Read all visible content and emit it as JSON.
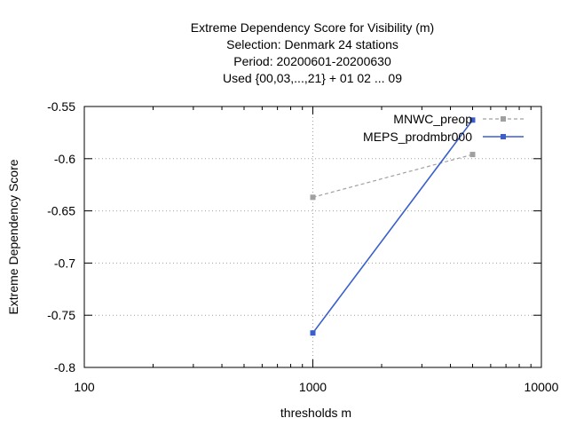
{
  "chart_data": {
    "type": "line",
    "title_lines": [
      "Extreme Dependency Score  for Visibility (m)",
      "Selection: Denmark     24 stations",
      "Period: 20200601-20200630",
      "Used {00,03,...,21} + 01 02 ... 09"
    ],
    "xlabel": "thresholds m",
    "ylabel": "Extreme Dependency Score",
    "x_scale": "log",
    "xlim": [
      100,
      10000
    ],
    "ylim": [
      -0.8,
      -0.55
    ],
    "x_ticks": [
      100,
      1000,
      10000
    ],
    "x_tick_labels": [
      "100",
      "1000",
      "10000"
    ],
    "y_ticks": [
      -0.8,
      -0.75,
      -0.7,
      -0.65,
      -0.6,
      -0.55
    ],
    "y_tick_labels": [
      "-0.8",
      "-0.75",
      "-0.7",
      "-0.65",
      "-0.6",
      "-0.55"
    ],
    "grid": true,
    "legend_position": "top-right",
    "series": [
      {
        "name": "MNWC_preop",
        "color": "#a0a0a0",
        "dashed": true,
        "points": [
          {
            "x": 1000,
            "y": -0.637
          },
          {
            "x": 5000,
            "y": -0.596
          }
        ]
      },
      {
        "name": "MEPS_prodmbr000",
        "color": "#3a5fcd",
        "dashed": false,
        "points": [
          {
            "x": 1000,
            "y": -0.767
          },
          {
            "x": 5000,
            "y": -0.563
          }
        ]
      }
    ]
  }
}
